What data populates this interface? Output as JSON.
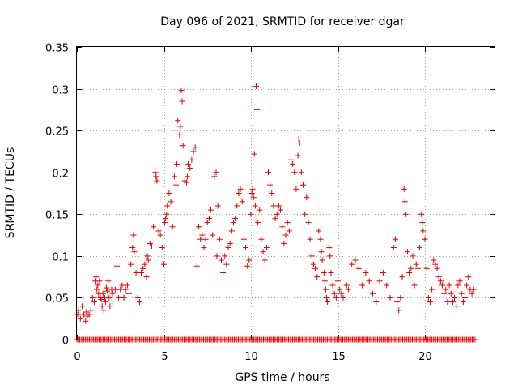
{
  "chart_data": {
    "type": "scatter",
    "title": "Day 096 of 2021, SRMTID for receiver dgar",
    "xlabel": "GPS time / hours",
    "ylabel": "SRMTID / TECUs",
    "xlim": [
      0,
      24
    ],
    "ylim": [
      0,
      0.35
    ],
    "x_ticks": [
      0,
      5,
      10,
      15,
      20
    ],
    "x_tick_labels": [
      "0",
      "5",
      "10",
      "15",
      "20"
    ],
    "y_ticks": [
      0,
      0.05,
      0.1,
      0.15,
      0.2,
      0.25,
      0.3,
      0.35
    ],
    "y_tick_labels": [
      "0",
      "0.05",
      "0.1",
      "0.15",
      "0.2",
      "0.25",
      "0.3",
      "0.35"
    ],
    "grid": true,
    "marker": "plus",
    "color": "#e00000",
    "series": [
      {
        "name": "SRMTID",
        "points": [
          [
            0.05,
            0.03
          ],
          [
            0.1,
            0.035
          ],
          [
            0.2,
            0.025
          ],
          [
            0.3,
            0.04
          ],
          [
            0.4,
            0.03
          ],
          [
            0.5,
            0.022
          ],
          [
            0.55,
            0.033
          ],
          [
            0.6,
            0.028
          ],
          [
            0.7,
            0.03
          ],
          [
            0.8,
            0.035
          ],
          [
            0.9,
            0.05
          ],
          [
            1.0,
            0.045
          ],
          [
            1.05,
            0.07
          ],
          [
            1.1,
            0.075
          ],
          [
            1.15,
            0.06
          ],
          [
            1.2,
            0.065
          ],
          [
            1.25,
            0.055
          ],
          [
            1.3,
            0.07
          ],
          [
            1.35,
            0.05
          ],
          [
            1.4,
            0.048
          ],
          [
            1.45,
            0.04
          ],
          [
            1.5,
            0.055
          ],
          [
            1.55,
            0.035
          ],
          [
            1.6,
            0.05
          ],
          [
            1.65,
            0.045
          ],
          [
            1.7,
            0.062
          ],
          [
            1.75,
            0.058
          ],
          [
            1.8,
            0.07
          ],
          [
            1.85,
            0.05
          ],
          [
            1.9,
            0.04
          ],
          [
            2.0,
            0.06
          ],
          [
            2.05,
            0.055
          ],
          [
            2.2,
            0.06
          ],
          [
            2.3,
            0.088
          ],
          [
            2.4,
            0.05
          ],
          [
            2.5,
            0.06
          ],
          [
            2.6,
            0.065
          ],
          [
            2.7,
            0.05
          ],
          [
            2.8,
            0.06
          ],
          [
            2.9,
            0.065
          ],
          [
            3.0,
            0.055
          ],
          [
            3.1,
            0.09
          ],
          [
            3.2,
            0.11
          ],
          [
            3.25,
            0.125
          ],
          [
            3.3,
            0.105
          ],
          [
            3.4,
            0.08
          ],
          [
            3.5,
            0.05
          ],
          [
            3.6,
            0.045
          ],
          [
            3.7,
            0.08
          ],
          [
            3.8,
            0.085
          ],
          [
            3.9,
            0.09
          ],
          [
            4.0,
            0.075
          ],
          [
            4.05,
            0.1
          ],
          [
            4.1,
            0.095
          ],
          [
            4.2,
            0.115
          ],
          [
            4.3,
            0.112
          ],
          [
            4.4,
            0.135
          ],
          [
            4.5,
            0.2
          ],
          [
            4.55,
            0.195
          ],
          [
            4.6,
            0.19
          ],
          [
            4.7,
            0.13
          ],
          [
            4.8,
            0.125
          ],
          [
            4.9,
            0.11
          ],
          [
            5.0,
            0.09
          ],
          [
            5.05,
            0.14
          ],
          [
            5.1,
            0.145
          ],
          [
            5.15,
            0.15
          ],
          [
            5.2,
            0.16
          ],
          [
            5.3,
            0.175
          ],
          [
            5.4,
            0.165
          ],
          [
            5.5,
            0.135
          ],
          [
            5.6,
            0.195
          ],
          [
            5.7,
            0.185
          ],
          [
            5.75,
            0.21
          ],
          [
            5.8,
            0.262
          ],
          [
            5.9,
            0.245
          ],
          [
            5.95,
            0.255
          ],
          [
            6.0,
            0.298
          ],
          [
            6.05,
            0.285
          ],
          [
            6.1,
            0.232
          ],
          [
            6.2,
            0.19
          ],
          [
            6.3,
            0.188
          ],
          [
            6.35,
            0.195
          ],
          [
            6.4,
            0.21
          ],
          [
            6.5,
            0.205
          ],
          [
            6.6,
            0.215
          ],
          [
            6.7,
            0.225
          ],
          [
            6.8,
            0.23
          ],
          [
            6.9,
            0.088
          ],
          [
            7.0,
            0.135
          ],
          [
            7.1,
            0.12
          ],
          [
            7.2,
            0.125
          ],
          [
            7.3,
            0.11
          ],
          [
            7.4,
            0.12
          ],
          [
            7.5,
            0.14
          ],
          [
            7.6,
            0.145
          ],
          [
            7.7,
            0.155
          ],
          [
            7.8,
            0.125
          ],
          [
            7.9,
            0.195
          ],
          [
            8.0,
            0.2
          ],
          [
            8.05,
            0.1
          ],
          [
            8.1,
            0.16
          ],
          [
            8.2,
            0.12
          ],
          [
            8.3,
            0.095
          ],
          [
            8.4,
            0.08
          ],
          [
            8.5,
            0.1
          ],
          [
            8.6,
            0.09
          ],
          [
            8.7,
            0.11
          ],
          [
            8.8,
            0.115
          ],
          [
            8.9,
            0.13
          ],
          [
            9.0,
            0.14
          ],
          [
            9.1,
            0.145
          ],
          [
            9.2,
            0.16
          ],
          [
            9.3,
            0.175
          ],
          [
            9.4,
            0.18
          ],
          [
            9.5,
            0.165
          ],
          [
            9.6,
            0.12
          ],
          [
            9.7,
            0.11
          ],
          [
            9.8,
            0.088
          ],
          [
            9.9,
            0.095
          ],
          [
            10.0,
            0.15
          ],
          [
            10.05,
            0.175
          ],
          [
            10.1,
            0.18
          ],
          [
            10.15,
            0.17
          ],
          [
            10.2,
            0.222
          ],
          [
            10.25,
            0.16
          ],
          [
            10.3,
            0.303
          ],
          [
            10.35,
            0.275
          ],
          [
            10.4,
            0.14
          ],
          [
            10.5,
            0.155
          ],
          [
            10.6,
            0.12
          ],
          [
            10.7,
            0.105
          ],
          [
            10.8,
            0.095
          ],
          [
            10.9,
            0.11
          ],
          [
            11.0,
            0.2
          ],
          [
            11.1,
            0.185
          ],
          [
            11.2,
            0.175
          ],
          [
            11.3,
            0.16
          ],
          [
            11.4,
            0.145
          ],
          [
            11.5,
            0.15
          ],
          [
            11.6,
            0.16
          ],
          [
            11.7,
            0.155
          ],
          [
            11.8,
            0.135
          ],
          [
            11.9,
            0.115
          ],
          [
            12.0,
            0.125
          ],
          [
            12.1,
            0.14
          ],
          [
            12.2,
            0.13
          ],
          [
            12.3,
            0.215
          ],
          [
            12.4,
            0.21
          ],
          [
            12.5,
            0.2
          ],
          [
            12.6,
            0.18
          ],
          [
            12.7,
            0.22
          ],
          [
            12.75,
            0.24
          ],
          [
            12.8,
            0.235
          ],
          [
            12.9,
            0.2
          ],
          [
            13.0,
            0.185
          ],
          [
            13.1,
            0.15
          ],
          [
            13.2,
            0.17
          ],
          [
            13.3,
            0.14
          ],
          [
            13.4,
            0.12
          ],
          [
            13.5,
            0.1
          ],
          [
            13.6,
            0.09
          ],
          [
            13.7,
            0.085
          ],
          [
            13.8,
            0.075
          ],
          [
            13.9,
            0.13
          ],
          [
            14.0,
            0.12
          ],
          [
            14.05,
            0.105
          ],
          [
            14.1,
            0.095
          ],
          [
            14.2,
            0.08
          ],
          [
            14.25,
            0.07
          ],
          [
            14.3,
            0.06
          ],
          [
            14.35,
            0.05
          ],
          [
            14.4,
            0.045
          ],
          [
            14.5,
            0.11
          ],
          [
            14.55,
            0.1
          ],
          [
            14.6,
            0.08
          ],
          [
            14.7,
            0.065
          ],
          [
            14.8,
            0.055
          ],
          [
            14.9,
            0.05
          ],
          [
            15.0,
            0.07
          ],
          [
            15.1,
            0.06
          ],
          [
            15.2,
            0.055
          ],
          [
            15.3,
            0.05
          ],
          [
            15.5,
            0.065
          ],
          [
            15.6,
            0.06
          ],
          [
            15.8,
            0.09
          ],
          [
            16.0,
            0.095
          ],
          [
            16.2,
            0.085
          ],
          [
            16.4,
            0.065
          ],
          [
            16.6,
            0.08
          ],
          [
            16.8,
            0.07
          ],
          [
            17.0,
            0.055
          ],
          [
            17.2,
            0.045
          ],
          [
            17.4,
            0.07
          ],
          [
            17.6,
            0.08
          ],
          [
            17.8,
            0.065
          ],
          [
            18.0,
            0.05
          ],
          [
            18.2,
            0.11
          ],
          [
            18.3,
            0.12
          ],
          [
            18.4,
            0.045
          ],
          [
            18.5,
            0.035
          ],
          [
            18.6,
            0.05
          ],
          [
            18.7,
            0.075
          ],
          [
            18.8,
            0.18
          ],
          [
            18.85,
            0.165
          ],
          [
            18.9,
            0.15
          ],
          [
            19.0,
            0.105
          ],
          [
            19.1,
            0.08
          ],
          [
            19.2,
            0.085
          ],
          [
            19.3,
            0.1
          ],
          [
            19.4,
            0.065
          ],
          [
            19.5,
            0.09
          ],
          [
            19.6,
            0.085
          ],
          [
            19.7,
            0.11
          ],
          [
            19.8,
            0.15
          ],
          [
            19.85,
            0.14
          ],
          [
            19.9,
            0.13
          ],
          [
            20.0,
            0.12
          ],
          [
            20.1,
            0.085
          ],
          [
            20.2,
            0.05
          ],
          [
            20.3,
            0.045
          ],
          [
            20.4,
            0.06
          ],
          [
            20.5,
            0.095
          ],
          [
            20.6,
            0.09
          ],
          [
            20.7,
            0.085
          ],
          [
            20.8,
            0.075
          ],
          [
            20.9,
            0.07
          ],
          [
            21.0,
            0.065
          ],
          [
            21.1,
            0.055
          ],
          [
            21.2,
            0.06
          ],
          [
            21.3,
            0.045
          ],
          [
            21.4,
            0.065
          ],
          [
            21.5,
            0.055
          ],
          [
            21.6,
            0.045
          ],
          [
            21.7,
            0.05
          ],
          [
            21.8,
            0.04
          ],
          [
            21.9,
            0.065
          ],
          [
            22.0,
            0.07
          ],
          [
            22.1,
            0.055
          ],
          [
            22.2,
            0.045
          ],
          [
            22.3,
            0.05
          ],
          [
            22.4,
            0.065
          ],
          [
            22.5,
            0.075
          ],
          [
            22.6,
            0.06
          ],
          [
            22.7,
            0.055
          ],
          [
            22.8,
            0.06
          ]
        ]
      }
    ],
    "zero_baseline_range": [
      0.0,
      22.9
    ]
  }
}
